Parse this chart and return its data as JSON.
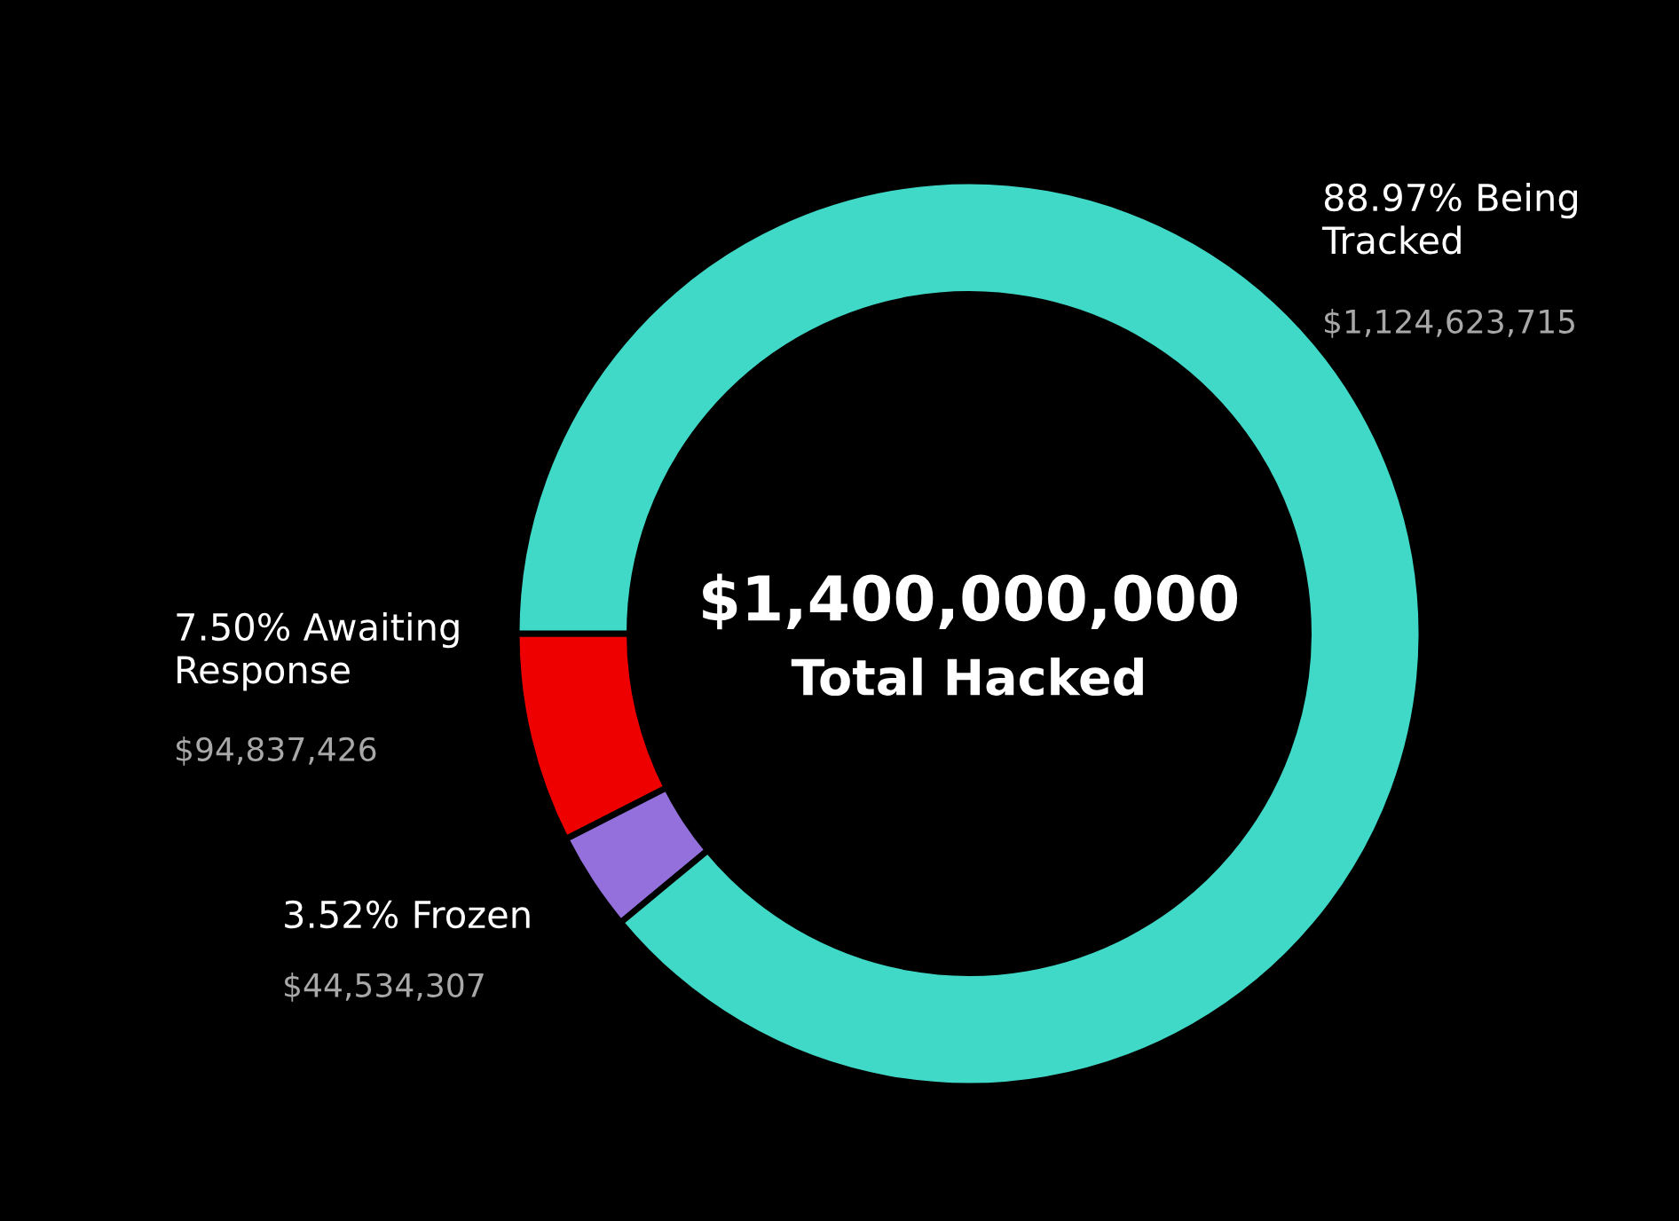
{
  "chart_data": {
    "type": "donut",
    "title": "$1,400,000,000",
    "subtitle": "Total Hacked",
    "categories": [
      "Awaiting Response",
      "Frozen",
      "Being Tracked"
    ],
    "values": [
      7.5,
      3.52,
      88.97
    ],
    "value_labels": [
      "7.50%",
      "3.52%",
      "88.97%"
    ],
    "colors": [
      "#ee0000",
      "#9370db",
      "#40d9c8"
    ],
    "annotations": [
      "$94,837,426",
      "$44,534,307",
      "$1,124,623,715"
    ]
  }
}
